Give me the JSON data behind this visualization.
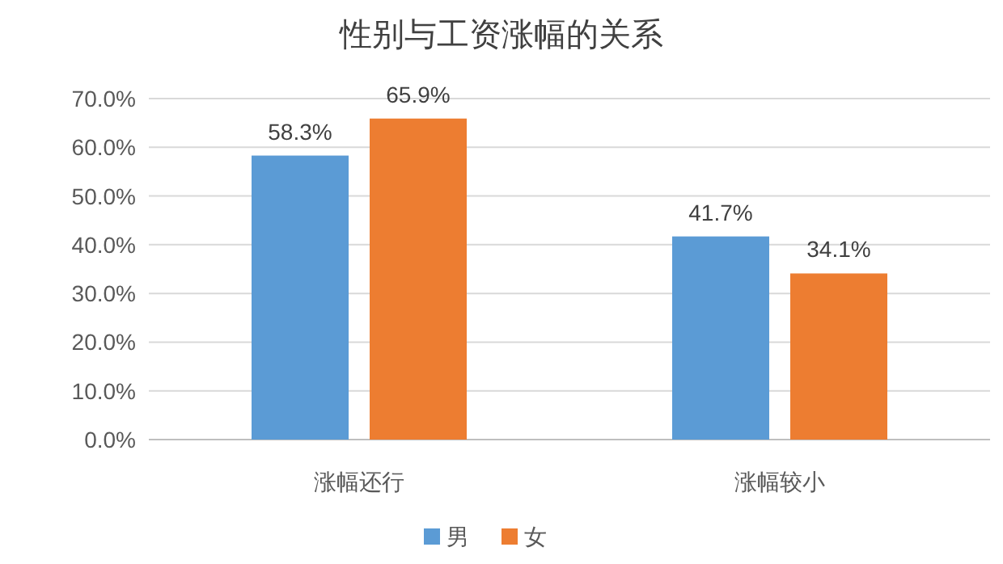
{
  "chart_data": {
    "type": "bar",
    "title": "性别与工资涨幅的关系",
    "categories": [
      "涨幅还行",
      "涨幅较小"
    ],
    "series": [
      {
        "name": "男",
        "color": "#5b9bd5",
        "values": [
          58.3,
          41.7
        ],
        "value_labels": [
          "58.3%",
          "41.7%"
        ]
      },
      {
        "name": "女",
        "color": "#ed7d31",
        "values": [
          65.9,
          34.1
        ],
        "value_labels": [
          "65.9%",
          "34.1%"
        ]
      }
    ],
    "ylim": [
      0,
      70
    ],
    "yticks": [
      {
        "value": 0,
        "label": "0.0%"
      },
      {
        "value": 10,
        "label": "10.0%"
      },
      {
        "value": 20,
        "label": "20.0%"
      },
      {
        "value": 30,
        "label": "30.0%"
      },
      {
        "value": 40,
        "label": "40.0%"
      },
      {
        "value": 50,
        "label": "50.0%"
      },
      {
        "value": 60,
        "label": "60.0%"
      },
      {
        "value": 70,
        "label": "70.0%"
      }
    ],
    "grid": "y",
    "legend": "bottom"
  }
}
